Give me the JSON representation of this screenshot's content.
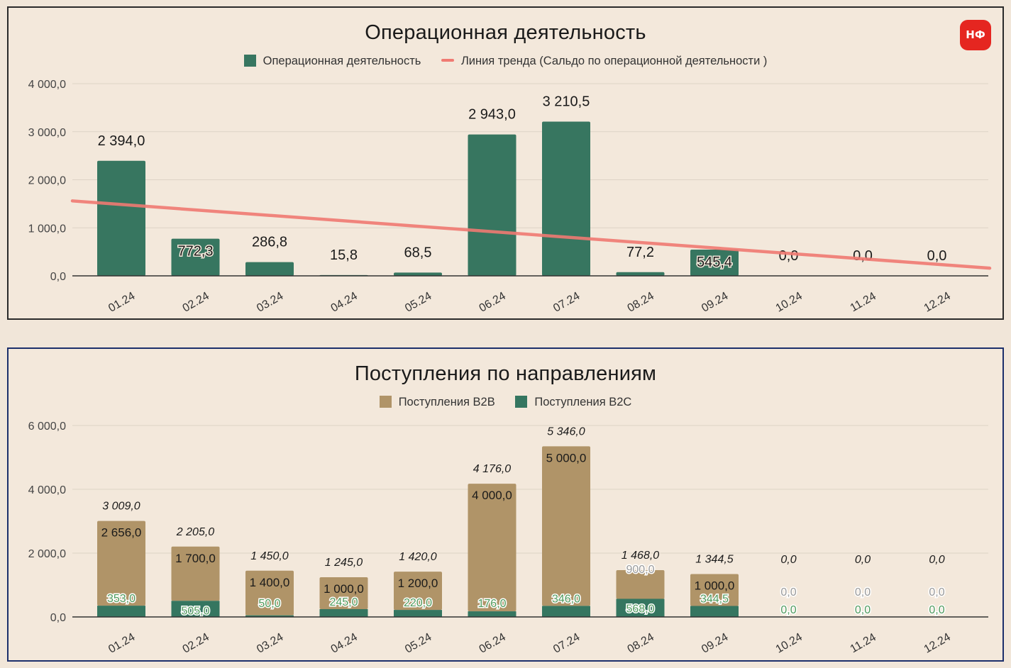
{
  "badge": "НФ",
  "colors": {
    "opGreen": "#377660",
    "b2b": "#b09468",
    "b2c": "#357660",
    "trend": "#f07a72",
    "grid": "#ddd3c6",
    "axis": "#333333"
  },
  "chart_data": [
    {
      "type": "bar",
      "title": "Операционная деятельность",
      "categories": [
        "01.24",
        "02.24",
        "03.24",
        "04.24",
        "05.24",
        "06.24",
        "07.24",
        "08.24",
        "09.24",
        "10.24",
        "11.24",
        "12.24"
      ],
      "series": [
        {
          "name": "Операционная деятельность",
          "values": [
            2394.0,
            772.3,
            286.8,
            15.8,
            68.5,
            2943.0,
            3210.5,
            77.2,
            545.4,
            0.0,
            0.0,
            0.0
          ],
          "labels": [
            "2 394,0",
            "772,3",
            "286,8",
            "15,8",
            "68,5",
            "2 943,0",
            "3 210,5",
            "77,2",
            "545,4",
            "0,0",
            "0,0",
            "0,0"
          ]
        }
      ],
      "trendline": {
        "name": "Линия тренда (Сальдо по операционной деятельности )",
        "start": 1560,
        "end": 160
      },
      "yticks": [
        0,
        1000,
        2000,
        3000,
        4000
      ],
      "ytick_labels": [
        "0,0",
        "1 000,0",
        "2 000,0",
        "3 000,0",
        "4 000,0"
      ],
      "ylim": [
        0,
        4000
      ],
      "legend": "top-center"
    },
    {
      "type": "bar",
      "stacked": true,
      "title": "Поступления по направлениям",
      "categories": [
        "01.24",
        "02.24",
        "03.24",
        "04.24",
        "05.24",
        "06.24",
        "07.24",
        "08.24",
        "09.24",
        "10.24",
        "11.24",
        "12.24"
      ],
      "series": [
        {
          "name": "Поступления B2B",
          "values": [
            2656.0,
            1700.0,
            1400.0,
            1000.0,
            1200.0,
            4000.0,
            5000.0,
            900.0,
            1000.0,
            0.0,
            0.0,
            0.0
          ],
          "labels": [
            "2 656,0",
            "1 700,0",
            "1 400,0",
            "1 000,0",
            "1 200,0",
            "4 000,0",
            "5 000,0",
            "900,0",
            "1 000,0",
            "0,0",
            "0,0",
            "0,0"
          ]
        },
        {
          "name": "Поступления B2C",
          "values": [
            353.0,
            505.0,
            50.0,
            245.0,
            220.0,
            176.0,
            346.0,
            568.0,
            344.5,
            0.0,
            0.0,
            0.0
          ],
          "labels": [
            "353,0",
            "505,0",
            "50,0",
            "245,0",
            "220,0",
            "176,0",
            "346,0",
            "568,0",
            "344,5",
            "0,0",
            "0,0",
            "0,0"
          ]
        }
      ],
      "totals": [
        3009.0,
        2205.0,
        1450.0,
        1245.0,
        1420.0,
        4176.0,
        5346.0,
        1468.0,
        1344.5,
        0.0,
        0.0,
        0.0
      ],
      "total_labels": [
        "3 009,0",
        "2 205,0",
        "1 450,0",
        "1 245,0",
        "1 420,0",
        "4 176,0",
        "5 346,0",
        "1 468,0",
        "1 344,5",
        "0,0",
        "0,0",
        "0,0"
      ],
      "yticks": [
        0,
        2000,
        4000,
        6000
      ],
      "ytick_labels": [
        "0,0",
        "2 000,0",
        "4 000,0",
        "6 000,0"
      ],
      "ylim": [
        0,
        6000
      ],
      "legend": "top-center"
    }
  ]
}
